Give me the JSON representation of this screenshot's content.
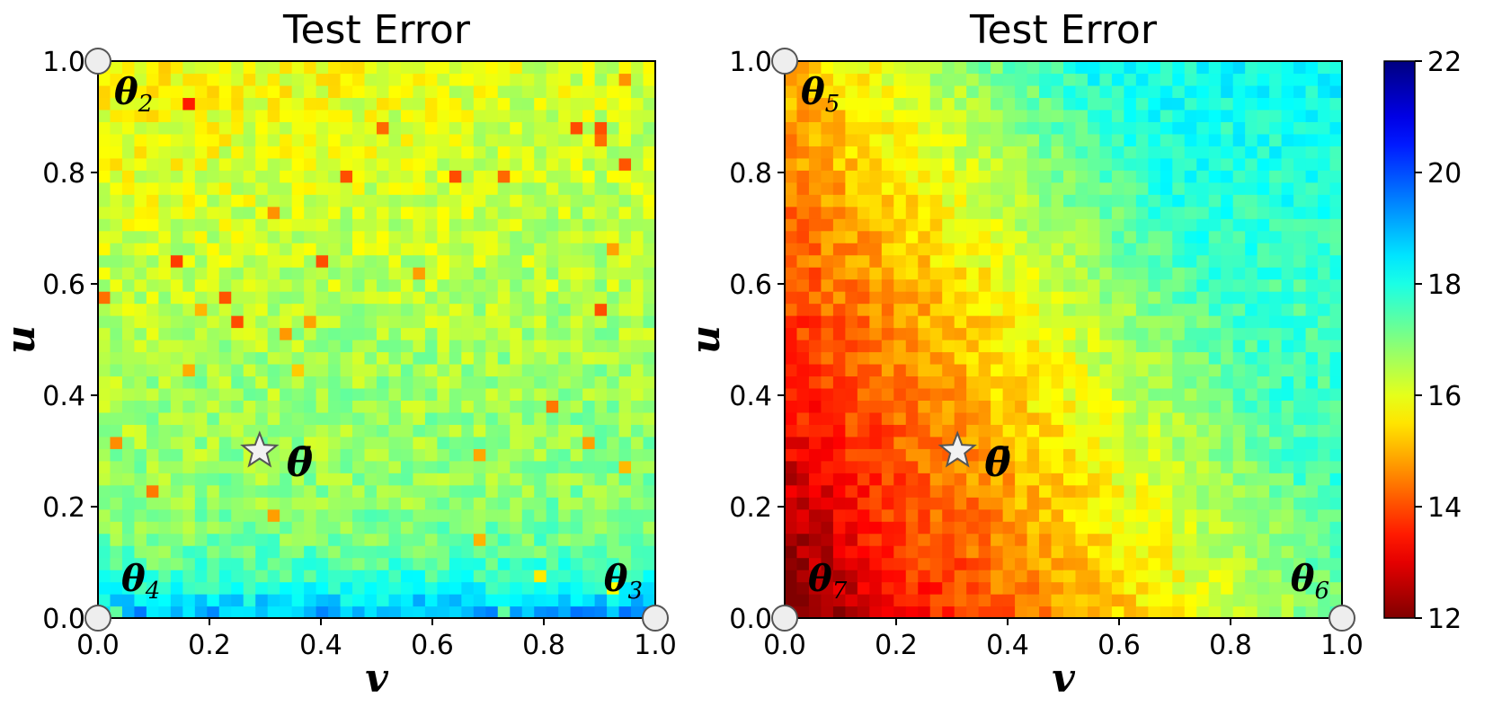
{
  "chart_data": [
    {
      "type": "heatmap",
      "title": "Test Error",
      "xlabel": "v",
      "ylabel": "u",
      "xlim": [
        0.0,
        1.0
      ],
      "ylim": [
        0.0,
        1.0
      ],
      "x_ticks": [
        "0.0",
        "0.2",
        "0.4",
        "0.6",
        "0.8",
        "1.0"
      ],
      "y_ticks": [
        "0.0",
        "0.2",
        "0.4",
        "0.6",
        "0.8",
        "1.0"
      ],
      "corner_labels": [
        {
          "symbol": "θ",
          "sub": "2",
          "v": 0.0,
          "u": 1.0
        },
        {
          "symbol": "θ",
          "sub": "4",
          "v": 0.0,
          "u": 0.0
        },
        {
          "symbol": "θ",
          "sub": "3",
          "v": 1.0,
          "u": 0.0
        }
      ],
      "corner_points": [
        {
          "v": 0.0,
          "u": 1.0
        },
        {
          "v": 0.0,
          "u": 0.0
        },
        {
          "v": 1.0,
          "u": 0.0
        }
      ],
      "average_point": {
        "v": 0.29,
        "u": 0.3,
        "label": "θ̄"
      },
      "value_description": "test error ~16 near top-left, ~17 in center and right, ~18-19 along bottom edge"
    },
    {
      "type": "heatmap",
      "title": "Test Error",
      "xlabel": "v",
      "ylabel": "u",
      "xlim": [
        0.0,
        1.0
      ],
      "ylim": [
        0.0,
        1.0
      ],
      "x_ticks": [
        "0.0",
        "0.2",
        "0.4",
        "0.6",
        "0.8",
        "1.0"
      ],
      "y_ticks": [
        "0.0",
        "0.2",
        "0.4",
        "0.6",
        "0.8",
        "1.0"
      ],
      "corner_labels": [
        {
          "symbol": "θ",
          "sub": "5",
          "v": 0.0,
          "u": 1.0
        },
        {
          "symbol": "θ",
          "sub": "7",
          "v": 0.0,
          "u": 0.0
        },
        {
          "symbol": "θ",
          "sub": "6",
          "v": 1.0,
          "u": 0.0
        }
      ],
      "corner_points": [
        {
          "v": 0.0,
          "u": 1.0
        },
        {
          "v": 0.0,
          "u": 0.0
        },
        {
          "v": 1.0,
          "u": 0.0
        }
      ],
      "average_point": {
        "v": 0.31,
        "u": 0.3,
        "label": "θ̄"
      },
      "value_description": "test error ~12-13 at left edge, ~14 along diagonal band, ~15-16 in middle, ~17-18 at right edge"
    }
  ],
  "colorbar": {
    "colormap": "jet",
    "min": 12,
    "max": 22,
    "ticks": [
      "12",
      "14",
      "16",
      "18",
      "20",
      "22"
    ],
    "tick_values": [
      12,
      14,
      16,
      18,
      20,
      22
    ],
    "reversed": true
  }
}
